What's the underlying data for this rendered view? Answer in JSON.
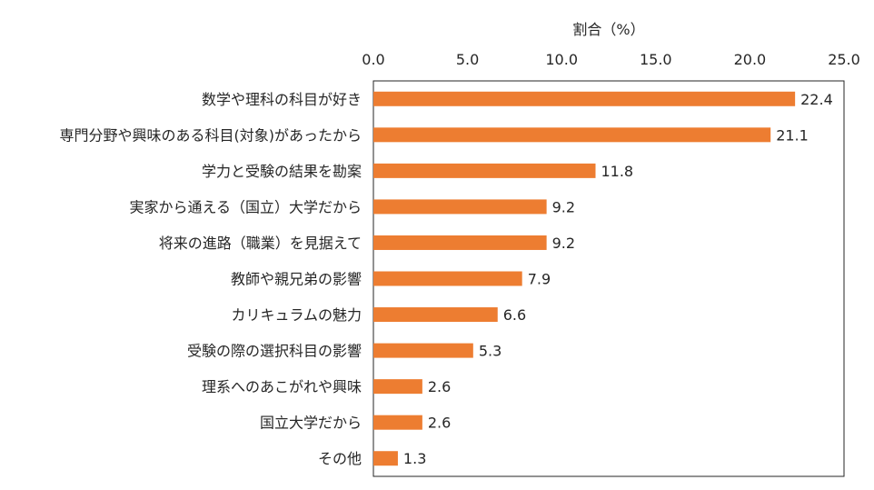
{
  "chart_data": {
    "type": "bar",
    "orientation": "horizontal",
    "xlabel": "割合（%）",
    "xlim": [
      0,
      25
    ],
    "xticks": [
      "0.0",
      "5.0",
      "10.0",
      "15.0",
      "20.0",
      "25.0"
    ],
    "xaxis_position": "top",
    "grid": false,
    "bar_color": "#ED7D31",
    "categories": [
      "数学や理科の科目が好き",
      "専門分野や興味のある科目(対象)があったから",
      "学力と受験の結果を勘案",
      "実家から通える（国立）大学だから",
      "将来の進路（職業）を見据えて",
      "教師や親兄弟の影響",
      "カリキュラムの魅力",
      "受験の際の選択科目の影響",
      "理系へのあこがれや興味",
      "国立大学だから",
      "その他"
    ],
    "values": [
      22.4,
      21.1,
      11.8,
      9.2,
      9.2,
      7.9,
      6.6,
      5.3,
      2.6,
      2.6,
      1.3
    ],
    "value_labels": [
      "22.4",
      "21.1",
      "11.8",
      "9.2",
      "9.2",
      "7.9",
      "6.6",
      "5.3",
      "2.6",
      "2.6",
      "1.3"
    ]
  }
}
